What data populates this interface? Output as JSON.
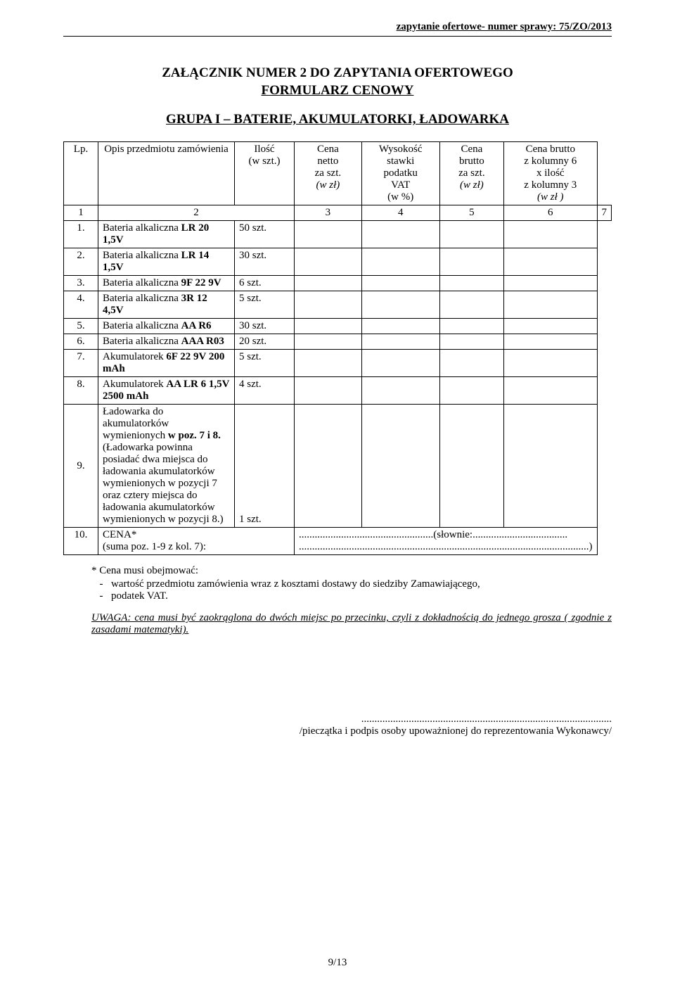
{
  "header": {
    "text": "zapytanie ofertowe- numer sprawy: 75/ZO/2013"
  },
  "titles": {
    "line1": "ZAŁĄCZNIK NUMER 2 DO ZAPYTANIA OFERTOWEGO",
    "line2": "FORMULARZ CENOWY",
    "group": "GRUPA I – BATERIE, AKUMULATORKI, ŁADOWARKA"
  },
  "columns": {
    "lp": "Lp.",
    "desc": "Opis przedmiotu zamówienia",
    "qty_l1": "Ilość",
    "qty_l2": "(w szt.)",
    "c3_l1": "Cena",
    "c3_l2": "netto",
    "c3_l3": "za szt.",
    "c3_l4": "(w zł)",
    "c4_l1": "Wysokość",
    "c4_l2": "stawki",
    "c4_l3": "podatku",
    "c4_l4": "VAT",
    "c4_l5": "(w %)",
    "c5_l1": "Cena",
    "c5_l2": "brutto",
    "c5_l3": "za szt.",
    "c5_l4": "(w zł)",
    "c6_l1": "Cena brutto",
    "c6_l2": "z kolumny 6",
    "c6_l3": "x ilość",
    "c6_l4": "z kolumny 3",
    "c6_l5": "(w zł )"
  },
  "numrow": {
    "c1": "1",
    "c2": "2",
    "c3": "3",
    "c4": "4",
    "c5": "5",
    "c6": "6",
    "c7": "7"
  },
  "rows": [
    {
      "lp": "1.",
      "pre": "Bateria alkaliczna ",
      "bold": "LR 20 1,5V",
      "qty": "50 szt."
    },
    {
      "lp": "2.",
      "pre": "Bateria alkaliczna ",
      "bold": "LR 14 1,5V",
      "qty": "30 szt."
    },
    {
      "lp": "3.",
      "pre": "Bateria alkaliczna ",
      "bold": "9F 22  9V",
      "qty": "6 szt."
    },
    {
      "lp": "4.",
      "pre": "Bateria alkaliczna ",
      "bold": "3R 12 4,5V",
      "qty": "5 szt."
    },
    {
      "lp": "5.",
      "pre": "Bateria alkaliczna ",
      "bold": "AA R6",
      "qty": "30 szt."
    },
    {
      "lp": "6.",
      "pre": "Bateria alkaliczna ",
      "bold": "AAA R03",
      "qty": "20 szt."
    },
    {
      "lp": "7.",
      "pre": "Akumulatorek ",
      "bold": "6F 22 9V 200 mAh",
      "qty": "5 szt."
    },
    {
      "lp": "8.",
      "pre": "Akumulatorek ",
      "bold": "AA LR 6 1,5V 2500 mAh",
      "qty": "4 szt."
    }
  ],
  "row9": {
    "lp": "9.",
    "line1": "Ładowarka do akumulatorków",
    "line2a": "wymienionych ",
    "line2b": "w poz. 7 i 8.",
    "sub": "(Ładowarka powinna posiadać dwa miejsca do ładowania akumulatorków wymienionych w pozycji 7 oraz cztery miejsca do ładowania akumulatorków wymienionych w pozycji 8.)",
    "qty": "1 szt."
  },
  "row10": {
    "lp": "10.",
    "label": "CENA*",
    "sub": "(suma poz. 1-9 z kol. 7):",
    "slownie_pre": "...................................................(słownie:....................................",
    "slownie_line2": "..............................................................................................................)"
  },
  "notes": {
    "intro": "* Cena  musi obejmować:",
    "b1": "wartość przedmiotu zamówienia wraz z kosztami dostawy do siedziby Zamawiającego,",
    "b2": "podatek VAT."
  },
  "uwaga": {
    "ul": "UWAGA: cena musi być zaokrąglona do dwóch miejsc po przecinku, czyli z dokładnością",
    "rest": " do jednego grosza ( zgodnie z zasadami matematyki)."
  },
  "sign": {
    "dots": "...............................................................................................",
    "caption": "/pieczątka i podpis osoby upoważnionej do reprezentowania Wykonawcy/"
  },
  "footer": {
    "page": "9/13"
  }
}
